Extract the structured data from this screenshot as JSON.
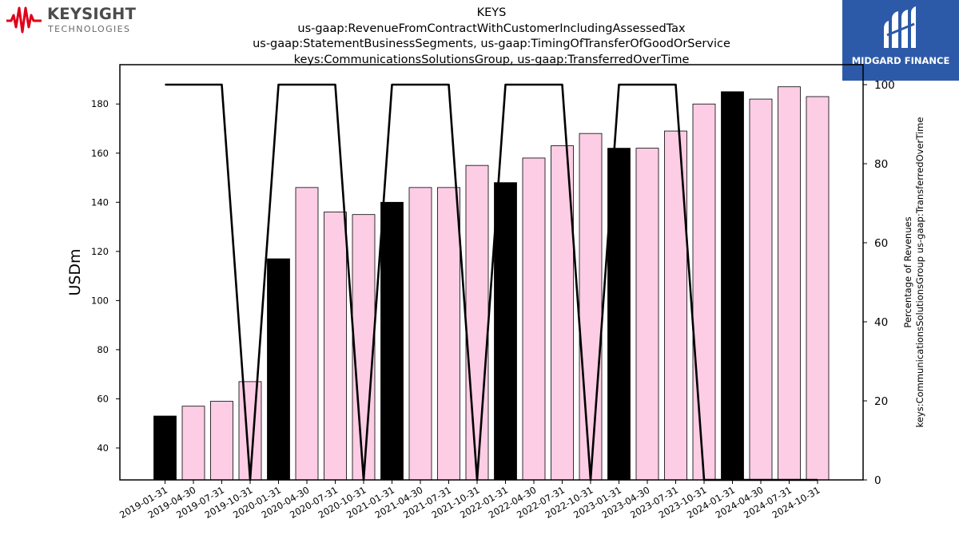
{
  "header": {
    "title_lines": [
      "KEYS",
      "us-gaap:RevenueFromContractWithCustomerIncludingAssessedTax",
      "us-gaap:StatementBusinessSegments, us-gaap:TimingOfTransferOfGoodOrService",
      "keys:CommunicationsSolutionsGroup, us-gaap:TransferredOverTime"
    ]
  },
  "logos": {
    "left_name": "KEYSIGHT",
    "left_sub": "TECHNOLOGIES",
    "left_color": "#e0001b",
    "right_name": "MIDGARD FINANCE",
    "right_bg": "#2d5aa8"
  },
  "chart_data": {
    "type": "bar",
    "categories": [
      "2019-01-31",
      "2019-04-30",
      "2019-07-31",
      "2019-10-31",
      "2020-01-31",
      "2020-04-30",
      "2020-07-31",
      "2020-10-31",
      "2021-01-31",
      "2021-04-30",
      "2021-07-31",
      "2021-10-31",
      "2022-01-31",
      "2022-04-30",
      "2022-07-31",
      "2022-10-31",
      "2023-01-31",
      "2023-04-30",
      "2023-07-31",
      "2023-10-31",
      "2024-01-31",
      "2024-04-30",
      "2024-07-31",
      "2024-10-31"
    ],
    "values": [
      53,
      57,
      59,
      67,
      117,
      146,
      136,
      135,
      140,
      146,
      146,
      155,
      148,
      158,
      163,
      168,
      162,
      162,
      169,
      180,
      185,
      182,
      187,
      183
    ],
    "bar_colors": [
      "#000000",
      "#fccde5",
      "#fccde5",
      "#fccde5",
      "#000000",
      "#fccde5",
      "#fccde5",
      "#fccde5",
      "#000000",
      "#fccde5",
      "#fccde5",
      "#fccde5",
      "#000000",
      "#fccde5",
      "#fccde5",
      "#fccde5",
      "#000000",
      "#fccde5",
      "#fccde5",
      "#fccde5",
      "#000000",
      "#fccde5",
      "#fccde5",
      "#fccde5"
    ],
    "line_values": [
      100,
      100,
      100,
      0,
      100,
      100,
      100,
      0,
      100,
      100,
      100,
      0,
      100,
      100,
      100,
      0,
      100,
      100,
      100,
      0,
      0,
      0,
      0,
      0
    ],
    "ylabel": "USDm",
    "y2label_lines": [
      "Percentage of Revenues",
      "keys:CommunicationsSolutionsGroup us-gaap:TransferredOverTime"
    ],
    "ylim": [
      27,
      196
    ],
    "y2lim": [
      0,
      100
    ],
    "yticks": [
      40,
      60,
      80,
      100,
      120,
      140,
      160,
      180
    ],
    "y2ticks": [
      0,
      20,
      40,
      60,
      80,
      100
    ],
    "grid": false
  }
}
